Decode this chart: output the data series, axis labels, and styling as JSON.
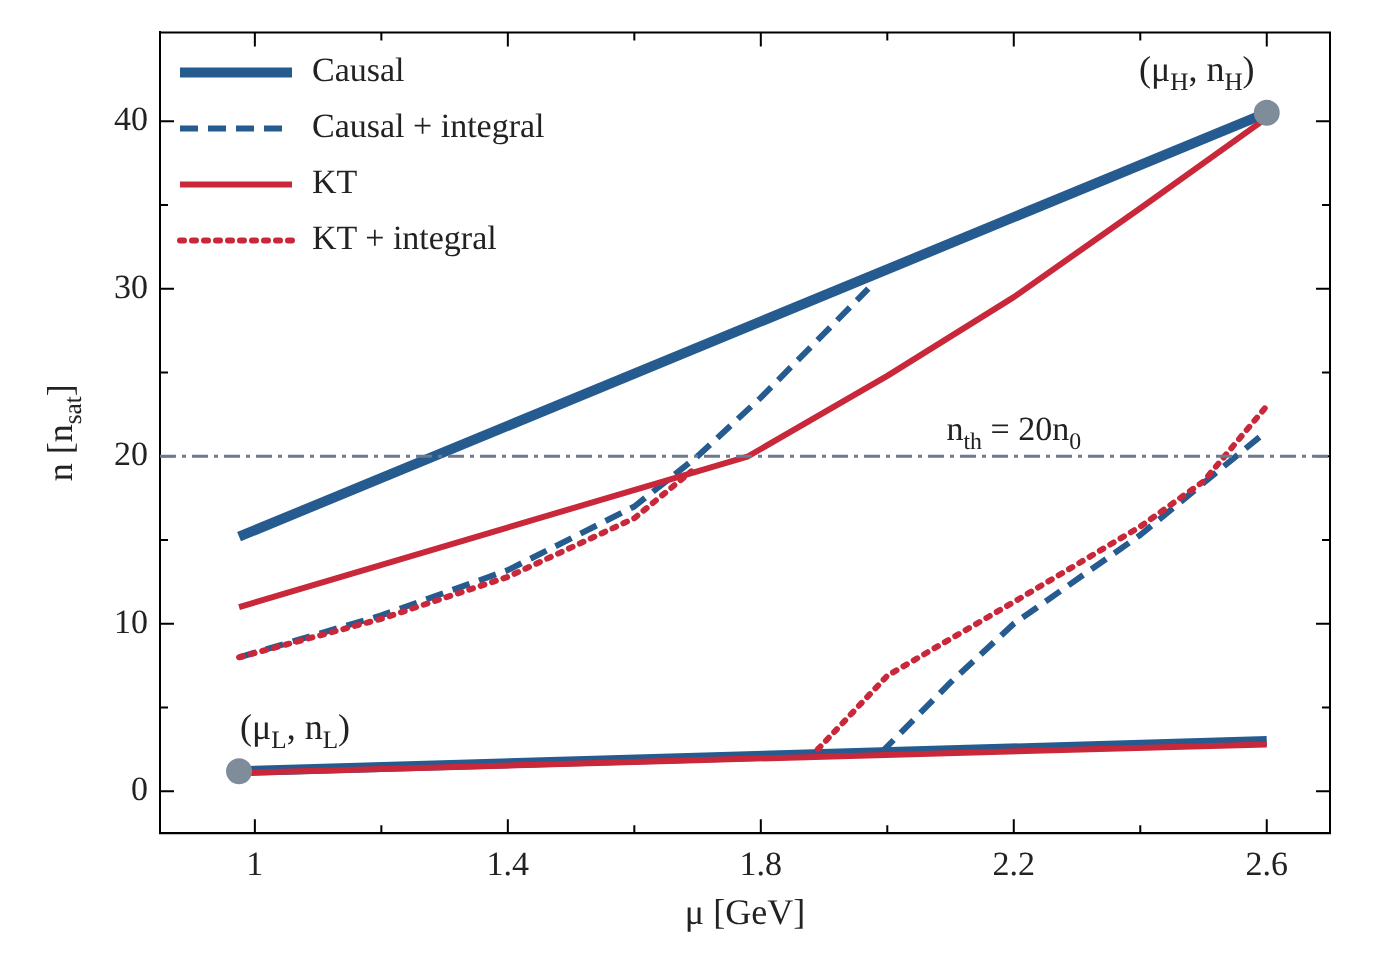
{
  "chart_data": {
    "type": "line",
    "xlabel": "μ [GeV]",
    "ylabel": "n [n$_{sat}$]",
    "xlim": [
      0.85,
      2.7
    ],
    "ylim": [
      -2.5,
      45.3
    ],
    "xticks": [
      1,
      {
        "value": 1.2,
        "label": null
      },
      1.4,
      {
        "value": 1.6,
        "label": null
      },
      1.8,
      {
        "value": 2.0,
        "label": null
      },
      2.2,
      {
        "value": 2.4,
        "label": null
      },
      2.6
    ],
    "yticks": [
      0,
      {
        "value": 5,
        "label": null
      },
      10,
      {
        "value": 15,
        "label": null
      },
      20,
      {
        "value": 25,
        "label": null
      },
      30,
      {
        "value": 35,
        "label": null
      },
      40
    ],
    "grid": false,
    "legend": "top left",
    "marker": "none",
    "series": [
      {
        "name": "Causal",
        "color": "#255b8f",
        "line_style": "solid",
        "x": [
          0.975,
          2.6
        ],
        "values": [
          15.2,
          40.5
        ]
      },
      {
        "color": "#255b8f",
        "line_style": "solid",
        "x": [
          0.975,
          2.6
        ],
        "values": [
          1.2,
          3.0
        ]
      },
      {
        "name": "Causal + integral",
        "color": "#255b8f",
        "line_style": "dashed",
        "x": [
          0.975,
          1.2,
          1.4,
          1.6,
          1.7,
          1.8,
          1.97
        ],
        "values": [
          8,
          10.5,
          13.2,
          17,
          20,
          23.5,
          30
        ]
      },
      {
        "color": "#255b8f",
        "line_style": "dashed",
        "x": [
          1.99,
          2.1,
          2.2,
          2.4,
          2.6
        ],
        "values": [
          2.3,
          6.5,
          10,
          15.3,
          21.5
        ]
      },
      {
        "name": "KT",
        "color": "#c8283a",
        "line_style": "solid",
        "x": [
          0.975,
          1.78,
          2.0,
          2.2,
          2.4,
          2.6
        ],
        "values": [
          11,
          20,
          24.8,
          29.5,
          34.8,
          40.2
        ]
      },
      {
        "color": "#c8283a",
        "line_style": "solid",
        "x": [
          0.975,
          2.6
        ],
        "values": [
          1.1,
          2.8
        ]
      },
      {
        "name": "KT + integral",
        "color": "#c8283a",
        "line_style": "dotted",
        "x": [
          0.975,
          1.2,
          1.4,
          1.6,
          1.69
        ],
        "values": [
          8,
          10.3,
          12.8,
          16.3,
          19.1
        ]
      },
      {
        "color": "#c8283a",
        "line_style": "dotted",
        "x": [
          1.89,
          2.0,
          2.2,
          2.4,
          2.5,
          2.6
        ],
        "values": [
          2.5,
          6.9,
          11.3,
          15.8,
          18.5,
          23
        ]
      },
      {
        "type": "scatter",
        "color": "#7f8c9a",
        "marker": "circle",
        "x": [
          0.975,
          2.6
        ],
        "values": [
          1.2,
          40.5
        ]
      }
    ],
    "ref_lines": [
      {
        "axis": "y",
        "value": 20,
        "label": "n$_{th}$ = 20n$_{0}$",
        "color": "#6b7a8f"
      }
    ],
    "annotations": [
      {
        "text": "(μ$_{L}$, n$_{L}$)",
        "x": 0.975,
        "y": 1.2
      },
      {
        "text": "(μ$_{H}$, n$_{H}$)",
        "x": 2.6,
        "y": 40.5
      }
    ]
  }
}
